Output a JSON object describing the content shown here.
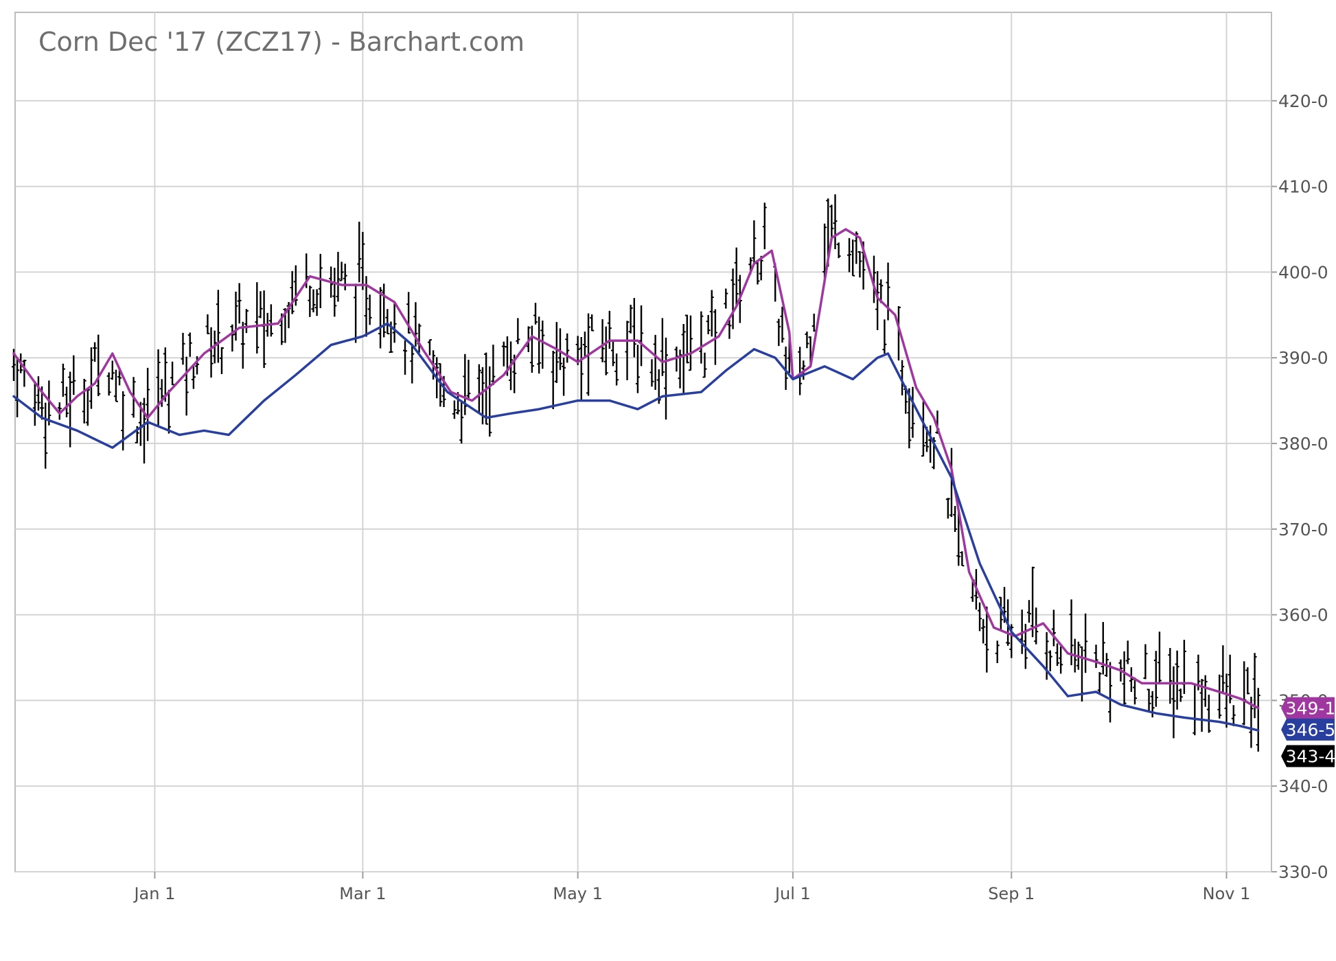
{
  "chart_data": {
    "type": "ohlc",
    "title": "Corn Dec '17 (ZCZ17) - Barchart.com",
    "ylim": [
      330,
      430
    ],
    "ytick_values": [
      330,
      340,
      350,
      360,
      370,
      380,
      390,
      400,
      410,
      420
    ],
    "ytick_labels": [
      "330-0",
      "340-0",
      "350-0",
      "360-0",
      "370-0",
      "380-0",
      "390-0",
      "400-0",
      "410-0",
      "420-0"
    ],
    "x_start": "2016-11-22",
    "x_end": "2017-11-12",
    "xticks": [
      {
        "date": "2017-01-01",
        "label": "Jan 1"
      },
      {
        "date": "2017-03-01",
        "label": "Mar 1"
      },
      {
        "date": "2017-05-01",
        "label": "May 1"
      },
      {
        "date": "2017-07-01",
        "label": "Jul 1"
      },
      {
        "date": "2017-09-01",
        "label": "Sep 1"
      },
      {
        "date": "2017-11-01",
        "label": "Nov 1"
      }
    ],
    "grid": true,
    "bar_color": "#000000",
    "series": [
      {
        "type": "ma",
        "color": "#a0369f",
        "points": [
          [
            "2016-11-22",
            390.5
          ],
          [
            "2016-11-30",
            386
          ],
          [
            "2016-12-05",
            383.5
          ],
          [
            "2016-12-10",
            385.5
          ],
          [
            "2016-12-15",
            387
          ],
          [
            "2016-12-20",
            390.5
          ],
          [
            "2016-12-25",
            386
          ],
          [
            "2016-12-30",
            383
          ],
          [
            "2017-01-05",
            386
          ],
          [
            "2017-01-15",
            390.5
          ],
          [
            "2017-01-25",
            393.5
          ],
          [
            "2017-02-05",
            394
          ],
          [
            "2017-02-14",
            399.5
          ],
          [
            "2017-02-23",
            398.5
          ],
          [
            "2017-03-02",
            398.5
          ],
          [
            "2017-03-10",
            396.5
          ],
          [
            "2017-03-18",
            391
          ],
          [
            "2017-03-26",
            386
          ],
          [
            "2017-04-01",
            385
          ],
          [
            "2017-04-10",
            388
          ],
          [
            "2017-04-18",
            392.5
          ],
          [
            "2017-04-25",
            391
          ],
          [
            "2017-05-01",
            389.5
          ],
          [
            "2017-05-10",
            392
          ],
          [
            "2017-05-18",
            392
          ],
          [
            "2017-05-25",
            389.5
          ],
          [
            "2017-06-02",
            390.5
          ],
          [
            "2017-06-10",
            392.5
          ],
          [
            "2017-06-15",
            396
          ],
          [
            "2017-06-20",
            401
          ],
          [
            "2017-06-25",
            402.5
          ],
          [
            "2017-06-30",
            393
          ],
          [
            "2017-07-01",
            387.5
          ],
          [
            "2017-07-06",
            389
          ],
          [
            "2017-07-12",
            404
          ],
          [
            "2017-07-16",
            405
          ],
          [
            "2017-07-20",
            404
          ],
          [
            "2017-07-25",
            397
          ],
          [
            "2017-07-30",
            395
          ],
          [
            "2017-08-05",
            386.5
          ],
          [
            "2017-08-10",
            383
          ],
          [
            "2017-08-15",
            377
          ],
          [
            "2017-08-20",
            365
          ],
          [
            "2017-08-27",
            358.5
          ],
          [
            "2017-09-02",
            357.5
          ],
          [
            "2017-09-10",
            359
          ],
          [
            "2017-09-17",
            355.5
          ],
          [
            "2017-09-25",
            354.5
          ],
          [
            "2017-10-02",
            353.5
          ],
          [
            "2017-10-08",
            352
          ],
          [
            "2017-10-15",
            352
          ],
          [
            "2017-10-22",
            352
          ],
          [
            "2017-10-30",
            351
          ],
          [
            "2017-11-05",
            350.2
          ],
          [
            "2017-11-10",
            349.1
          ]
        ]
      },
      {
        "type": "ma",
        "color": "#283fa0",
        "points": [
          [
            "2016-11-22",
            385.5
          ],
          [
            "2016-11-30",
            383
          ],
          [
            "2016-12-10",
            381.5
          ],
          [
            "2016-12-20",
            379.5
          ],
          [
            "2016-12-30",
            382.5
          ],
          [
            "2017-01-08",
            381
          ],
          [
            "2017-01-15",
            381.5
          ],
          [
            "2017-01-22",
            381
          ],
          [
            "2017-02-01",
            385
          ],
          [
            "2017-02-10",
            388
          ],
          [
            "2017-02-20",
            391.5
          ],
          [
            "2017-03-01",
            392.5
          ],
          [
            "2017-03-08",
            394
          ],
          [
            "2017-03-15",
            391.5
          ],
          [
            "2017-03-25",
            386
          ],
          [
            "2017-04-05",
            383
          ],
          [
            "2017-04-12",
            383.5
          ],
          [
            "2017-04-20",
            384
          ],
          [
            "2017-05-01",
            385
          ],
          [
            "2017-05-10",
            385
          ],
          [
            "2017-05-18",
            384
          ],
          [
            "2017-05-25",
            385.5
          ],
          [
            "2017-06-05",
            386
          ],
          [
            "2017-06-12",
            388.5
          ],
          [
            "2017-06-20",
            391
          ],
          [
            "2017-06-26",
            390
          ],
          [
            "2017-07-01",
            387.5
          ],
          [
            "2017-07-10",
            389
          ],
          [
            "2017-07-18",
            387.5
          ],
          [
            "2017-07-25",
            390
          ],
          [
            "2017-07-28",
            390.5
          ],
          [
            "2017-08-05",
            384
          ],
          [
            "2017-08-15",
            376
          ],
          [
            "2017-08-23",
            366
          ],
          [
            "2017-09-01",
            358
          ],
          [
            "2017-09-10",
            354
          ],
          [
            "2017-09-17",
            350.5
          ],
          [
            "2017-09-25",
            351
          ],
          [
            "2017-10-02",
            349.5
          ],
          [
            "2017-10-12",
            348.5
          ],
          [
            "2017-10-20",
            348
          ],
          [
            "2017-10-30",
            347.5
          ],
          [
            "2017-11-05",
            347
          ],
          [
            "2017-11-10",
            346.5
          ]
        ]
      }
    ],
    "value_tags": [
      {
        "label": "349-1",
        "value": 349.1,
        "color": "#a0369f"
      },
      {
        "label": "346-5",
        "value": 346.6,
        "color": "#283fa0"
      },
      {
        "label": "343-4",
        "value": 343.5,
        "color": "#000000"
      }
    ]
  }
}
